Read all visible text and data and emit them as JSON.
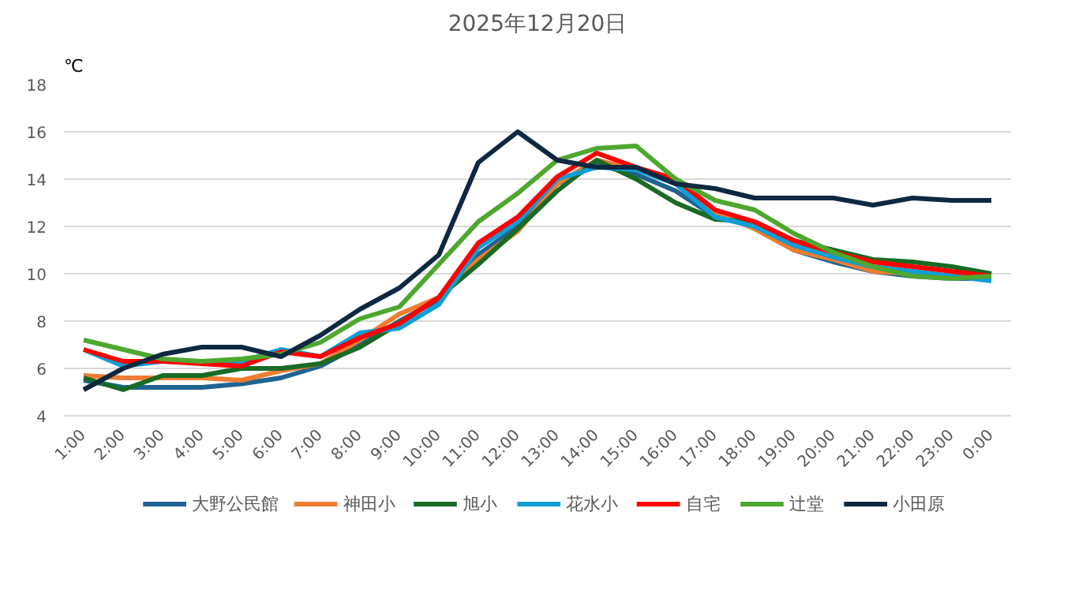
{
  "chart_data": {
    "type": "line",
    "title": "2025年12月20日",
    "ylabel": "℃",
    "categories": [
      "1:00",
      "2:00",
      "3:00",
      "4:00",
      "5:00",
      "6:00",
      "7:00",
      "8:00",
      "9:00",
      "10:00",
      "11:00",
      "12:00",
      "13:00",
      "14:00",
      "15:00",
      "16:00",
      "17:00",
      "18:00",
      "19:00",
      "20:00",
      "21:00",
      "22:00",
      "23:00",
      "0:00"
    ],
    "ylim": [
      4,
      18
    ],
    "yticks": [
      4,
      6,
      8,
      10,
      12,
      14,
      16,
      18
    ],
    "grid": "y",
    "legend": "bottom",
    "line_style": "solid",
    "series": [
      {
        "name": "大野公民館",
        "color": "#1f6391",
        "values": [
          5.5,
          5.2,
          5.2,
          5.2,
          5.35,
          5.6,
          6.1,
          7.0,
          8.0,
          8.9,
          10.8,
          12.0,
          13.8,
          14.6,
          14.2,
          13.5,
          12.4,
          12.1,
          11.0,
          10.5,
          10.1,
          9.9,
          9.8,
          9.8
        ]
      },
      {
        "name": "神田小",
        "color": "#ed7d31",
        "values": [
          5.7,
          5.6,
          5.6,
          5.6,
          5.5,
          5.9,
          6.2,
          7.2,
          8.3,
          9.0,
          10.6,
          11.8,
          13.8,
          14.8,
          14.4,
          14.0,
          12.6,
          11.9,
          11.0,
          10.6,
          10.1,
          10.0,
          9.9,
          9.8
        ]
      },
      {
        "name": "旭小",
        "color": "#196b24",
        "values": [
          5.6,
          5.1,
          5.7,
          5.7,
          6.0,
          6.0,
          6.2,
          6.9,
          7.9,
          9.0,
          10.4,
          11.9,
          13.5,
          14.8,
          14.0,
          13.0,
          12.3,
          12.2,
          11.4,
          11.0,
          10.6,
          10.5,
          10.3,
          10.0
        ]
      },
      {
        "name": "花水小",
        "color": "#0f9ed5",
        "values": [
          6.8,
          6.1,
          6.3,
          6.3,
          6.3,
          6.8,
          6.5,
          7.5,
          7.7,
          8.7,
          11.1,
          12.2,
          14.0,
          14.5,
          14.4,
          13.8,
          12.4,
          12.0,
          11.2,
          10.7,
          10.3,
          10.1,
          9.9,
          9.7
        ]
      },
      {
        "name": "自宅",
        "color": "#ff0000",
        "values": [
          6.8,
          6.3,
          6.3,
          6.2,
          6.1,
          6.7,
          6.5,
          7.3,
          7.9,
          9.0,
          11.3,
          12.4,
          14.1,
          15.1,
          14.5,
          14.0,
          12.7,
          12.2,
          11.4,
          10.9,
          10.5,
          10.3,
          10.1,
          9.9
        ]
      },
      {
        "name": "辻堂",
        "color": "#4ea72e",
        "values": [
          7.2,
          6.8,
          6.4,
          6.3,
          6.4,
          6.6,
          7.1,
          8.1,
          8.6,
          10.4,
          12.2,
          13.4,
          14.8,
          15.3,
          15.4,
          14.0,
          13.1,
          12.7,
          11.7,
          10.9,
          10.3,
          9.9,
          9.8,
          9.9
        ]
      },
      {
        "name": "小田原",
        "color": "#0e2841",
        "values": [
          5.1,
          6.0,
          6.6,
          6.9,
          6.9,
          6.5,
          7.4,
          8.5,
          9.4,
          10.8,
          14.7,
          16.0,
          14.8,
          14.5,
          14.5,
          13.8,
          13.6,
          13.2,
          13.2,
          13.2,
          12.9,
          13.2,
          13.1,
          13.1
        ]
      }
    ]
  }
}
